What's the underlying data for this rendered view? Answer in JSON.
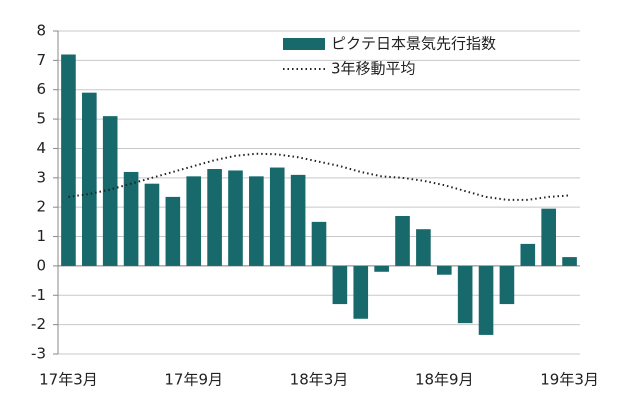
{
  "chart_data": {
    "type": "bar",
    "categories": [
      "17年3月",
      null,
      null,
      null,
      null,
      null,
      "17年9月",
      null,
      null,
      null,
      null,
      null,
      "18年3月",
      null,
      null,
      null,
      null,
      null,
      "18年9月",
      null,
      null,
      null,
      null,
      null,
      "19年3月"
    ],
    "series": [
      {
        "name": "ピクテ日本景気先行指数",
        "type": "bar",
        "color": "#17696c",
        "values": [
          7.2,
          5.9,
          5.1,
          3.2,
          2.8,
          2.35,
          3.05,
          3.3,
          3.25,
          3.05,
          3.35,
          3.1,
          1.5,
          -1.3,
          -1.8,
          -0.2,
          1.7,
          1.25,
          -0.3,
          -1.95,
          -2.35,
          -1.3,
          0.75,
          1.95,
          0.3
        ]
      },
      {
        "name": "3年移動平均",
        "type": "line",
        "color": "#222222",
        "values": [
          2.35,
          2.45,
          2.6,
          2.8,
          3.0,
          3.2,
          3.4,
          3.6,
          3.75,
          3.82,
          3.8,
          3.7,
          3.55,
          3.4,
          3.2,
          3.05,
          3.0,
          2.9,
          2.75,
          2.55,
          2.35,
          2.25,
          2.25,
          2.35,
          2.4
        ]
      }
    ],
    "ylim": [
      -3,
      8
    ],
    "yticks": [
      -3,
      -2,
      -1,
      0,
      1,
      2,
      3,
      4,
      5,
      6,
      7,
      8
    ],
    "grid": true,
    "negative_tick_color": "#e03a3a"
  }
}
